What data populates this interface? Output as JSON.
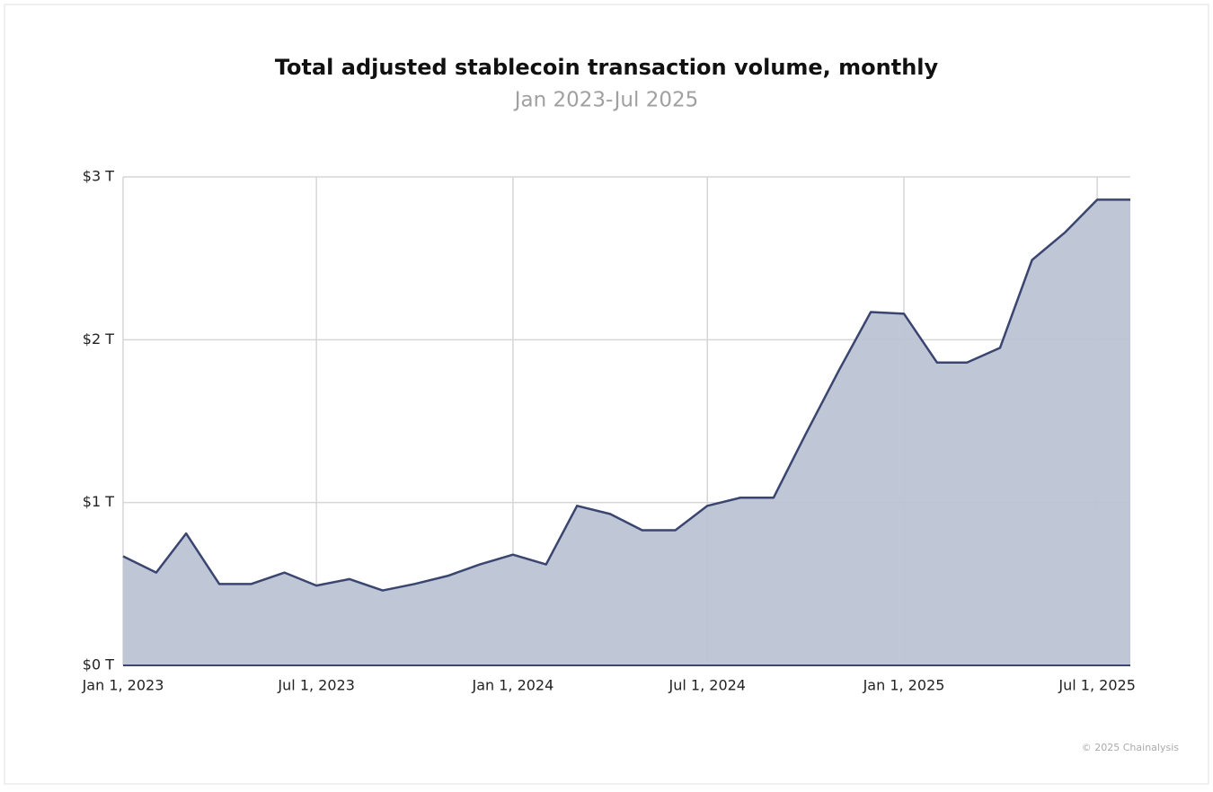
{
  "chart_data": {
    "type": "area",
    "title": "Total adjusted stablecoin transaction volume, monthly",
    "subtitle": "Jan 2023-Jul 2025",
    "footer": "© 2025 Chainalysis",
    "x": [
      "2023-01-01",
      "2023-02-01",
      "2023-03-01",
      "2023-04-01",
      "2023-05-01",
      "2023-06-01",
      "2023-07-01",
      "2023-08-01",
      "2023-09-01",
      "2023-10-01",
      "2023-11-01",
      "2023-12-01",
      "2024-01-01",
      "2024-02-01",
      "2024-03-01",
      "2024-04-01",
      "2024-05-01",
      "2024-06-01",
      "2024-07-01",
      "2024-08-01",
      "2024-09-01",
      "2024-10-01",
      "2024-11-01",
      "2024-12-01",
      "2025-01-01",
      "2025-02-01",
      "2025-03-01",
      "2025-04-01",
      "2025-05-01",
      "2025-06-01",
      "2025-07-01",
      "2025-08-01"
    ],
    "series": [
      {
        "color": "#3a4570",
        "fill": "#bcc4d5",
        "values": [
          0.67,
          0.57,
          0.81,
          0.5,
          0.5,
          0.57,
          0.49,
          0.53,
          0.46,
          0.5,
          0.55,
          0.62,
          0.68,
          0.62,
          0.98,
          0.93,
          0.83,
          0.83,
          0.98,
          1.03,
          1.03,
          1.42,
          1.81,
          2.17,
          2.16,
          1.86,
          1.86,
          1.95,
          2.49,
          2.66,
          2.86,
          2.86
        ]
      }
    ],
    "xlim": [
      "2023-01-01",
      "2025-08-01"
    ],
    "xticks": [
      {
        "value": "2023-01-01",
        "label": "Jan 1, 2023"
      },
      {
        "value": "2023-07-01",
        "label": "Jul 1, 2023"
      },
      {
        "value": "2024-01-01",
        "label": "Jan 1, 2024"
      },
      {
        "value": "2024-07-01",
        "label": "Jul 1, 2024"
      },
      {
        "value": "2025-01-01",
        "label": "Jan 1, 2025"
      },
      {
        "value": "2025-07-01",
        "label": "Jul 1, 2025"
      }
    ],
    "ylim": [
      0,
      3
    ],
    "yticks": [
      {
        "value": 0,
        "label": "$0 T"
      },
      {
        "value": 1,
        "label": "$1 T"
      },
      {
        "value": 2,
        "label": "$2 T"
      },
      {
        "value": 3,
        "label": "$3 T"
      }
    ],
    "grid": true
  }
}
